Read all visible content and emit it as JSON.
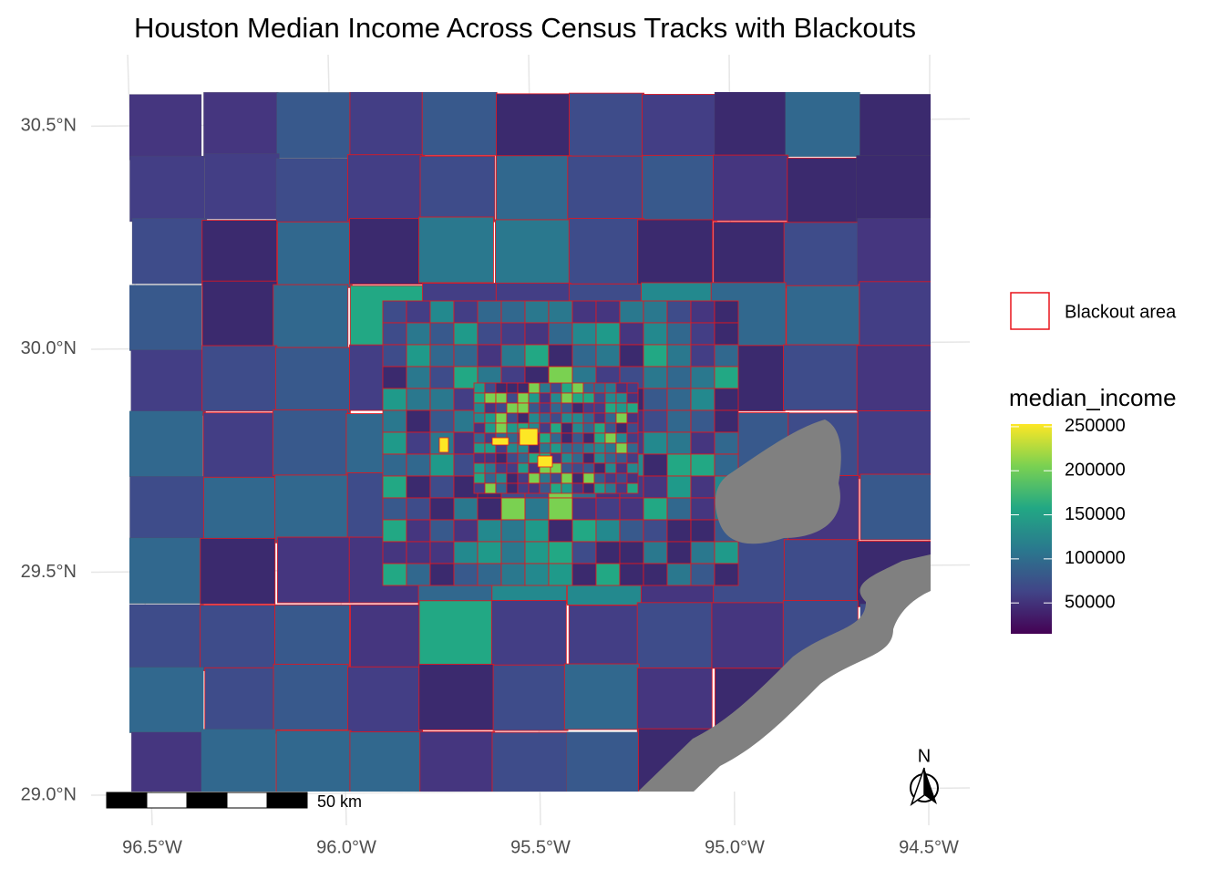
{
  "title": "Houston Median Income Across Census Tracks with Blackouts",
  "lat_ticks": [
    {
      "value": 30.5,
      "label": "30.5°N"
    },
    {
      "value": 30.0,
      "label": "30.0°N"
    },
    {
      "value": 29.5,
      "label": "29.5°N"
    },
    {
      "value": 29.0,
      "label": "29.0°N"
    }
  ],
  "lon_ticks": [
    {
      "value": -96.5,
      "label": "96.5°W"
    },
    {
      "value": -96.0,
      "label": "96.0°W"
    },
    {
      "value": -95.5,
      "label": "95.5°W"
    },
    {
      "value": -95.0,
      "label": "95.0°W"
    },
    {
      "value": -94.5,
      "label": "94.5°W"
    }
  ],
  "lon_range": [
    -96.6,
    -94.4
  ],
  "lat_range": [
    28.95,
    30.6
  ],
  "legend": {
    "blackout_label": "Blackout area",
    "blackout_color": "#e8141b",
    "income_title": "median_income",
    "income_range": [
      15000,
      253000
    ],
    "income_ticks": [
      50000,
      100000,
      150000,
      200000,
      250000
    ]
  },
  "scale_bar": "50 km",
  "north": "N"
}
